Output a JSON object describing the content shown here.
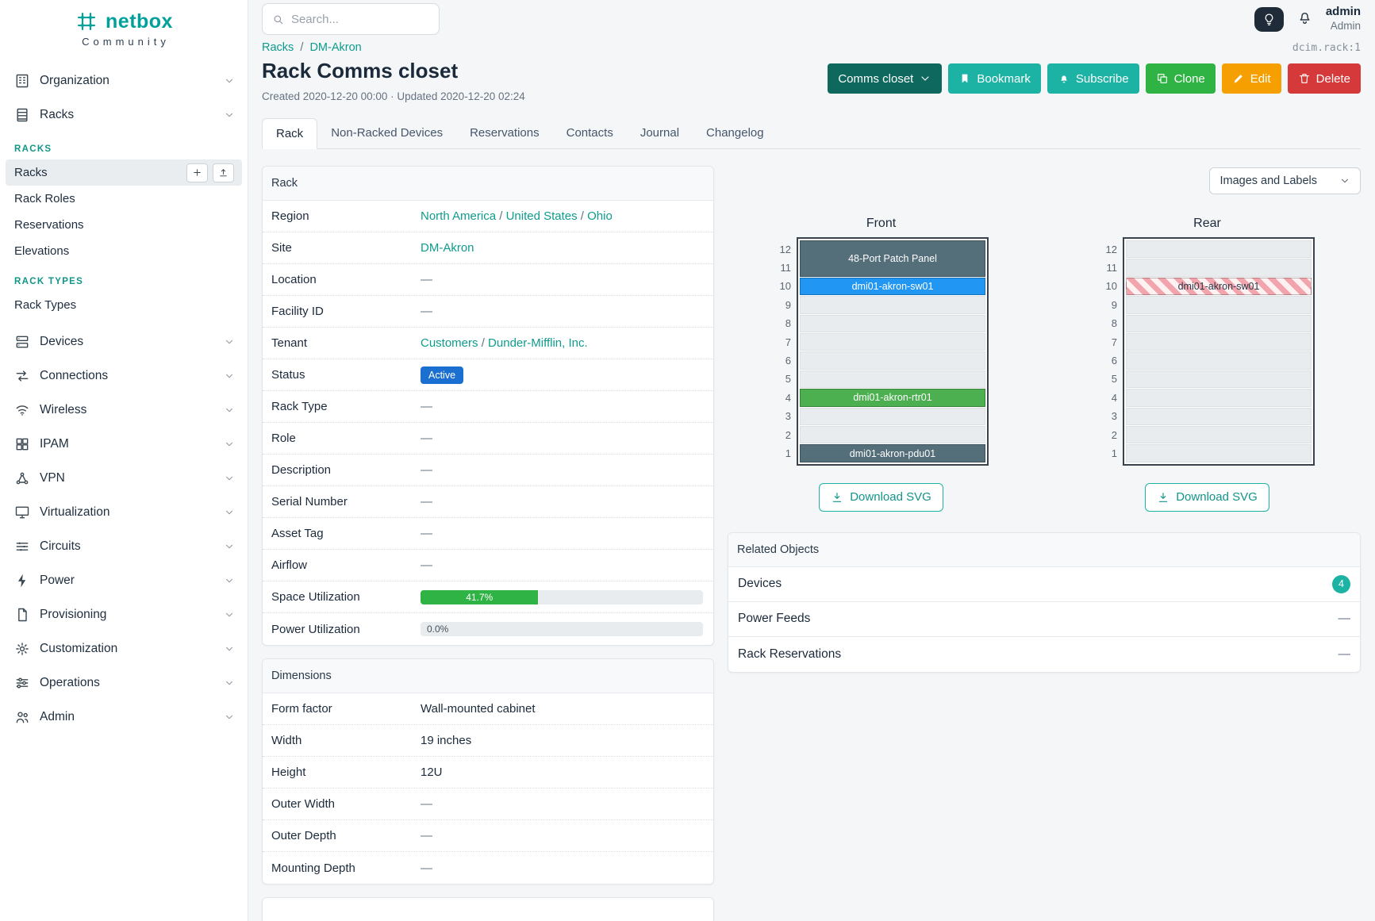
{
  "brand": {
    "name": "netbox",
    "tagline": "Community"
  },
  "misc": {
    "slash": "/"
  },
  "colors": {
    "brand_teal": "#00a19a",
    "link_teal": "#0f9b8e",
    "button_teal": "#1db3a4",
    "status_active_blue": "#1a6fd1",
    "utilization_green": "#2fb344"
  },
  "topbar": {
    "search_placeholder": "Search...",
    "user": {
      "name": "admin",
      "role": "Admin"
    }
  },
  "sidebar": {
    "items": [
      {
        "label": "Organization"
      },
      {
        "label": "Racks"
      },
      {
        "label": "Devices"
      },
      {
        "label": "Connections"
      },
      {
        "label": "Wireless"
      },
      {
        "label": "IPAM"
      },
      {
        "label": "VPN"
      },
      {
        "label": "Virtualization"
      },
      {
        "label": "Circuits"
      },
      {
        "label": "Power"
      },
      {
        "label": "Provisioning"
      },
      {
        "label": "Customization"
      },
      {
        "label": "Operations"
      },
      {
        "label": "Admin"
      }
    ],
    "racks_submenu": {
      "group1_header": "RACKS",
      "group1": [
        "Racks",
        "Rack Roles",
        "Reservations",
        "Elevations"
      ],
      "group2_header": "RACK TYPES",
      "group2": [
        "Rack Types"
      ]
    }
  },
  "page": {
    "breadcrumb": [
      "Racks",
      "DM-Akron"
    ],
    "object_id": "dcim.rack:1",
    "title": "Rack Comms closet",
    "meta": "Created 2020-12-20 00:00 · Updated 2020-12-20 02:24",
    "actions": {
      "status_dropdown": "Comms closet",
      "bookmark": "Bookmark",
      "subscribe": "Subscribe",
      "clone": "Clone",
      "edit": "Edit",
      "delete": "Delete"
    },
    "tabs": [
      "Rack",
      "Non-Racked Devices",
      "Reservations",
      "Contacts",
      "Journal",
      "Changelog"
    ],
    "active_tab": "Rack"
  },
  "rack_card": {
    "title": "Rack",
    "region": {
      "label": "Region",
      "links": [
        "North America",
        "United States",
        "Ohio"
      ]
    },
    "site": {
      "label": "Site",
      "value": "DM-Akron"
    },
    "location": {
      "label": "Location",
      "value": "—"
    },
    "facility_id": {
      "label": "Facility ID",
      "value": "—"
    },
    "tenant": {
      "label": "Tenant",
      "links": [
        "Customers",
        "Dunder-Mifflin, Inc."
      ]
    },
    "status": {
      "label": "Status",
      "value": "Active"
    },
    "rack_type": {
      "label": "Rack Type",
      "value": "—"
    },
    "role": {
      "label": "Role",
      "value": "—"
    },
    "description": {
      "label": "Description",
      "value": "—"
    },
    "serial": {
      "label": "Serial Number",
      "value": "—"
    },
    "asset_tag": {
      "label": "Asset Tag",
      "value": "—"
    },
    "airflow": {
      "label": "Airflow",
      "value": "—"
    },
    "space_util": {
      "label": "Space Utilization",
      "value": "41.7%",
      "percent": 41.7
    },
    "power_util": {
      "label": "Power Utilization",
      "value": "0.0%",
      "percent": 0
    }
  },
  "dimensions_card": {
    "title": "Dimensions",
    "rows": [
      {
        "label": "Form factor",
        "value": "Wall-mounted cabinet"
      },
      {
        "label": "Width",
        "value": "19 inches"
      },
      {
        "label": "Height",
        "value": "12U"
      },
      {
        "label": "Outer Width",
        "value": "—"
      },
      {
        "label": "Outer Depth",
        "value": "—"
      },
      {
        "label": "Mounting Depth",
        "value": "—"
      }
    ]
  },
  "elevation": {
    "view_select": "Images and Labels",
    "unit_numbers": [
      "12",
      "11",
      "10",
      "9",
      "8",
      "7",
      "6",
      "5",
      "4",
      "3",
      "2",
      "1"
    ],
    "front": {
      "title": "Front",
      "download": "Download SVG",
      "devices": [
        {
          "units": "11-12",
          "label": "48-Port Patch Panel",
          "color": "#546e7a"
        },
        {
          "units": "10",
          "label": "dmi01-akron-sw01",
          "color": "#2196f3"
        },
        {
          "units": "4",
          "label": "dmi01-akron-rtr01",
          "color": "#4caf50"
        },
        {
          "units": "1",
          "label": "dmi01-akron-pdu01",
          "color": "#546e7a"
        }
      ]
    },
    "rear": {
      "title": "Rear",
      "download": "Download SVG",
      "devices": [
        {
          "units": "10",
          "label": "dmi01-akron-sw01",
          "style": "striped-rear"
        }
      ]
    }
  },
  "related": {
    "title": "Related Objects",
    "rows": [
      {
        "label": "Devices",
        "value": "4",
        "badge": true
      },
      {
        "label": "Power Feeds",
        "value": "—"
      },
      {
        "label": "Rack Reservations",
        "value": "—"
      }
    ]
  }
}
